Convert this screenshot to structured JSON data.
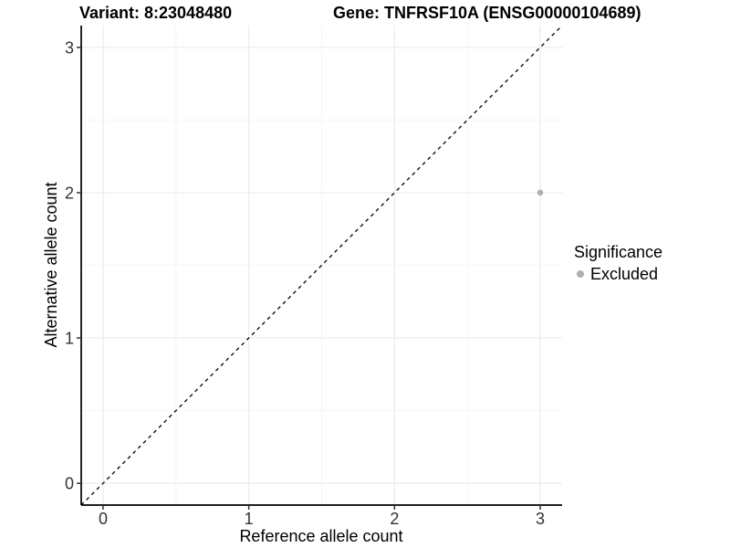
{
  "header": {
    "variant_label": "Variant: 8:23048480",
    "gene_label": "Gene: TNFRSF10A (ENSG00000104689)"
  },
  "legend": {
    "title": "Significance",
    "items": [
      {
        "label": "Excluded",
        "color": "#b0b0b0"
      }
    ]
  },
  "chart_data": {
    "type": "scatter",
    "title_left": "Variant: 8:23048480",
    "title_right": "Gene: TNFRSF10A (ENSG00000104689)",
    "xlabel": "Reference allele count",
    "ylabel": "Alternative allele count",
    "xlim": [
      -0.15,
      3.15
    ],
    "ylim": [
      -0.15,
      3.15
    ],
    "xticks": [
      0,
      1,
      2,
      3
    ],
    "yticks": [
      0,
      1,
      2,
      3
    ],
    "x_minor": [
      0.5,
      1.5,
      2.5
    ],
    "y_minor": [
      0.5,
      1.5,
      2.5
    ],
    "grid": true,
    "legend_position": "right",
    "series": [
      {
        "name": "Excluded",
        "color": "#b0b0b0",
        "points": [
          {
            "x": 3,
            "y": 2
          }
        ]
      }
    ],
    "reference_line": {
      "kind": "identity",
      "slope": 1,
      "intercept": 0,
      "linetype": "dashed",
      "color": "#000000"
    },
    "colors": {
      "background": "#ffffff",
      "grid_major": "#e8e8e8",
      "grid_minor": "#f4f4f4",
      "axis_line": "#000000",
      "tick_mark": "#333333",
      "tick_label": "#333333",
      "axis_title": "#000000"
    }
  }
}
